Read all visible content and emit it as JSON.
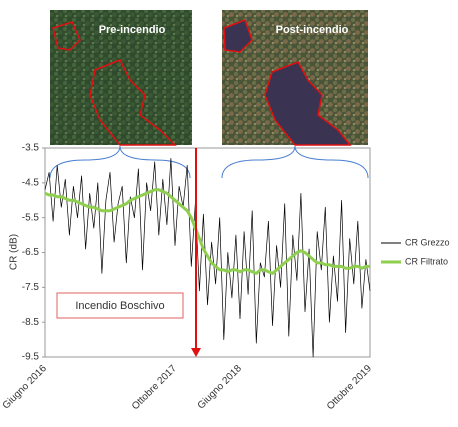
{
  "images": [
    {
      "label": "Pre-incendio"
    },
    {
      "label": "Post-incendio"
    }
  ],
  "chart_data": {
    "type": "line",
    "ylabel": "CR (dB)",
    "annotation": "Incendio Boschivo",
    "ylim": [
      -9.5,
      -3.5
    ],
    "yticks": [
      -3.5,
      -4.5,
      -5.5,
      -6.5,
      -7.5,
      -8.5,
      -9.5
    ],
    "grid": false,
    "categories": [
      "Giugno 2016",
      null,
      null,
      null,
      null,
      null,
      null,
      null,
      null,
      null,
      null,
      null,
      null,
      null,
      null,
      null,
      null,
      null,
      null,
      null,
      null,
      null,
      null,
      null,
      null,
      null,
      null,
      null,
      null,
      null,
      null,
      null,
      "Ottobre 2017",
      null,
      null,
      null,
      null,
      null,
      null,
      null,
      null,
      null,
      null,
      null,
      null,
      null,
      null,
      null,
      "Giugno 2018",
      null,
      null,
      null,
      null,
      null,
      null,
      null,
      null,
      null,
      null,
      null,
      null,
      null,
      null,
      null,
      null,
      null,
      null,
      null,
      null,
      null,
      null,
      null,
      null,
      null,
      null,
      null,
      null,
      null,
      null,
      null,
      "Ottobre 2019"
    ],
    "series": [
      {
        "name": "CR Grezzo",
        "color": "#000000",
        "values": [
          -4.7,
          -4.2,
          -5.6,
          -4.0,
          -5.2,
          -4.4,
          -6.0,
          -4.6,
          -5.5,
          -4.3,
          -6.4,
          -4.8,
          -5.8,
          -4.5,
          -7.1,
          -5.0,
          -4.2,
          -6.2,
          -5.1,
          -4.6,
          -6.8,
          -4.9,
          -5.5,
          -4.1,
          -7.0,
          -4.5,
          -5.3,
          -3.9,
          -6.0,
          -4.4,
          -5.7,
          -3.8,
          -6.3,
          -4.6,
          -5.2,
          -4.0,
          -6.9,
          -5.1,
          -7.6,
          -5.4,
          -8.0,
          -6.2,
          -7.4,
          -5.5,
          -9.0,
          -6.5,
          -7.8,
          -6.0,
          -8.4,
          -5.9,
          -7.7,
          -5.3,
          -9.1,
          -6.8,
          -7.2,
          -5.6,
          -8.6,
          -6.3,
          -7.5,
          -5.1,
          -8.9,
          -6.0,
          -7.3,
          -4.8,
          -8.2,
          -6.4,
          -9.5,
          -5.9,
          -7.0,
          -5.2,
          -8.5,
          -6.6,
          -7.9,
          -5.0,
          -8.8,
          -6.1,
          -7.4,
          -5.6,
          -8.1,
          -6.7,
          -7.6
        ]
      },
      {
        "name": "CR Filtrato",
        "color": "#8fcf4f",
        "values": [
          -4.8,
          -4.85,
          -4.85,
          -4.9,
          -4.9,
          -4.95,
          -5.0,
          -5.0,
          -5.05,
          -5.1,
          -5.15,
          -5.2,
          -5.2,
          -5.25,
          -5.3,
          -5.3,
          -5.3,
          -5.25,
          -5.2,
          -5.15,
          -5.1,
          -5.0,
          -4.95,
          -4.9,
          -4.85,
          -4.8,
          -4.75,
          -4.7,
          -4.7,
          -4.75,
          -4.8,
          -4.9,
          -5.0,
          -5.1,
          -5.2,
          -5.3,
          -5.5,
          -5.8,
          -6.1,
          -6.4,
          -6.6,
          -6.8,
          -6.9,
          -7.0,
          -7.0,
          -7.05,
          -7.0,
          -7.0,
          -7.05,
          -7.0,
          -7.0,
          -7.05,
          -7.1,
          -7.0,
          -7.0,
          -7.05,
          -7.1,
          -7.0,
          -6.9,
          -6.8,
          -6.7,
          -6.6,
          -6.5,
          -6.45,
          -6.5,
          -6.6,
          -6.7,
          -6.8,
          -6.8,
          -6.85,
          -6.85,
          -6.9,
          -6.9,
          -6.9,
          -6.95,
          -6.95,
          -6.9,
          -6.9,
          -6.95,
          -6.9,
          -6.9
        ]
      }
    ]
  }
}
